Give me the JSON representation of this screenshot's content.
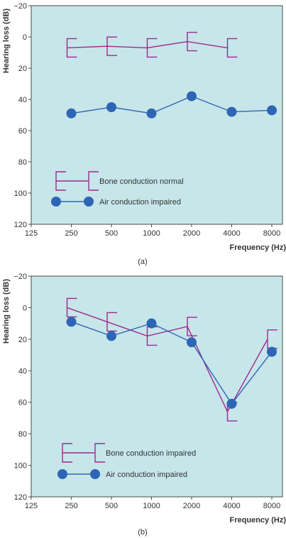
{
  "colors": {
    "plot_bg": "#c7e6ea",
    "axis": "#4a4a4a",
    "bone": "#9c2a8e",
    "air": "#2f65b5"
  },
  "chart_data": [
    {
      "type": "line",
      "panel_label": "(a)",
      "xlabel": "Frequency (Hz)",
      "ylabel": "Hearing loss (dB)",
      "x_scale": "log2",
      "x_ticks": [
        125,
        250,
        500,
        1000,
        2000,
        4000,
        8000
      ],
      "x_tick_labels": [
        "125",
        "250",
        "500",
        "1000",
        "2000",
        "4000",
        "8000"
      ],
      "ylim": [
        -20,
        120
      ],
      "y_inverted": true,
      "y_ticks": [
        -20,
        0,
        20,
        40,
        60,
        80,
        100,
        120
      ],
      "y_tick_labels": [
        "−20",
        "0",
        "20",
        "40",
        "60",
        "80",
        "100",
        "120"
      ],
      "grid": false,
      "legend_position": "bottom-left",
      "series": [
        {
          "name": "Bone conduction normal",
          "marker": "bracket",
          "x": [
            250,
            500,
            1000,
            2000,
            4000
          ],
          "y": [
            7,
            6,
            7,
            3,
            7
          ]
        },
        {
          "name": "Air conduction impaired",
          "marker": "circle",
          "x": [
            250,
            500,
            1000,
            2000,
            4000,
            8000
          ],
          "y": [
            49,
            45,
            49,
            38,
            48,
            47
          ]
        }
      ]
    },
    {
      "type": "line",
      "panel_label": "(b)",
      "xlabel": "Frequency (Hz)",
      "ylabel": "Hearing loss (dB)",
      "x_scale": "log2",
      "x_ticks": [
        125,
        250,
        500,
        1000,
        2000,
        4000,
        8000
      ],
      "x_tick_labels": [
        "125",
        "250",
        "500",
        "1000",
        "2000",
        "4000",
        "8000"
      ],
      "ylim": [
        -20,
        120
      ],
      "y_inverted": true,
      "y_ticks": [
        -20,
        0,
        20,
        40,
        60,
        80,
        100,
        120
      ],
      "y_tick_labels": [
        "−20",
        "0",
        "20",
        "40",
        "60",
        "80",
        "100",
        "120"
      ],
      "grid": false,
      "legend_position": "bottom-left",
      "series": [
        {
          "name": "Bone conduction impaired",
          "marker": "bracket",
          "x": [
            250,
            500,
            1000,
            2000,
            4000,
            8000
          ],
          "y": [
            0,
            9,
            18,
            12,
            66,
            20
          ]
        },
        {
          "name": "Air conduction impaired",
          "marker": "circle",
          "x": [
            250,
            500,
            1000,
            2000,
            4000,
            8000
          ],
          "y": [
            9,
            18,
            10,
            22,
            61,
            28
          ]
        }
      ]
    }
  ]
}
